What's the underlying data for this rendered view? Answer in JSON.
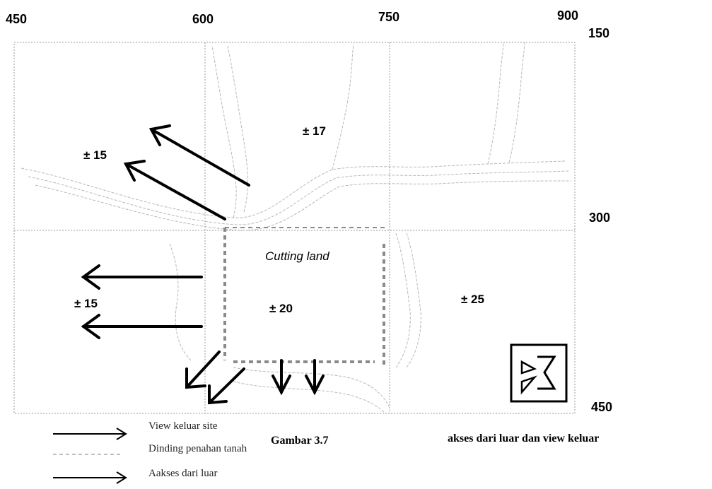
{
  "axis_top": {
    "x450": "450",
    "x600": "600",
    "x750": "750",
    "x900": "900"
  },
  "axis_right": {
    "y150": "150",
    "y300": "300",
    "y450": "450"
  },
  "elevations": {
    "e17": "± 17",
    "e15_top": "± 15",
    "e15_left": "± 15",
    "e20": "± 20",
    "e25": "± 25"
  },
  "area_label": "Cutting land",
  "legend": {
    "view": "View keluar site",
    "wall": "Dinding penahan tanah",
    "access": "Aakses dari luar"
  },
  "caption": {
    "number": "Gambar 3.7",
    "title": "akses dari luar dan view keluar"
  },
  "colors": {
    "ink": "#000000",
    "contour": "#b8b8b8",
    "grid": "#999999",
    "wall": "#8a8a8a"
  }
}
